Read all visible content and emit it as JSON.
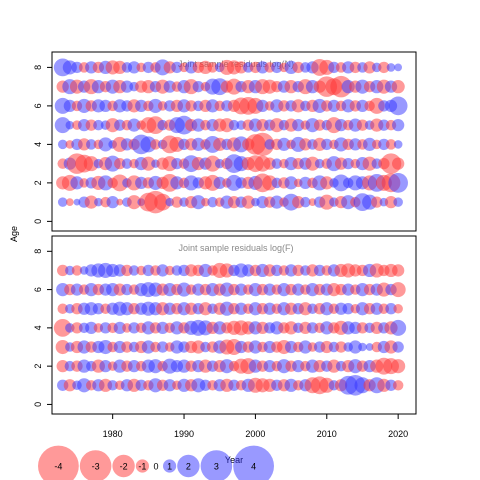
{
  "colors": {
    "positive": "#3333ff",
    "negative": "#ff3333",
    "frame": "#000000",
    "title": "#8a8a8a"
  },
  "chart_data": [
    {
      "type": "scatter",
      "title": "Joint sample residuals log(N)",
      "xlabel": "",
      "ylabel": "",
      "xlim": [
        1971.5,
        2022.5
      ],
      "ylim": [
        -0.5,
        8.8
      ],
      "x_ticks": [
        1980,
        1990,
        2000,
        2010,
        2020
      ],
      "y_ticks": [
        0,
        2,
        4,
        6,
        8
      ],
      "ages": [
        1,
        2,
        3,
        4,
        5,
        6,
        7,
        8
      ],
      "x_start": 1973,
      "x_end": 2020,
      "residuals": {
        "1": [
          0.6,
          -0.4,
          0.3,
          0.8,
          -1.0,
          0.5,
          -0.7,
          0.9,
          -0.3,
          0.6,
          -1.1,
          0.4,
          -1.6,
          -2.0,
          -1.4,
          0.5,
          -0.8,
          0.6,
          -0.9,
          1.1,
          -0.5,
          0.7,
          -0.6,
          1.0,
          -0.9,
          0.8,
          -1.0,
          0.5,
          0.9,
          -0.8,
          1.0,
          -0.6,
          1.4,
          -0.9,
          0.7,
          -0.4,
          0.8,
          -1.2,
          0.6,
          -0.9,
          1.1,
          -0.7,
          1.5,
          1.2,
          -0.8,
          0.5,
          -0.9,
          0.6
        ],
        "2": [
          -1.0,
          -1.3,
          1.0,
          -0.6,
          0.8,
          -1.1,
          1.2,
          -0.7,
          -1.4,
          0.6,
          -1.2,
          0.9,
          -0.8,
          1.1,
          -0.9,
          -1.5,
          1.0,
          -0.7,
          1.2,
          0.8,
          -1.0,
          -1.3,
          0.9,
          -0.6,
          1.3,
          0.8,
          -0.9,
          1.1,
          -1.6,
          -1.2,
          0.7,
          -0.8,
          1.0,
          -0.5,
          0.9,
          -0.7,
          1.2,
          -1.0,
          0.6,
          1.4,
          0.7,
          1.2,
          1.0,
          -1.2,
          1.5,
          -1.3,
          -1.6,
          1.7
        ],
        "3": [
          -0.7,
          0.9,
          -1.8,
          -1.5,
          -1.2,
          0.6,
          -1.0,
          1.3,
          -0.8,
          0.7,
          -0.6,
          1.0,
          -1.1,
          0.5,
          -0.9,
          -1.2,
          0.8,
          -0.7,
          1.4,
          -1.0,
          0.9,
          -1.3,
          0.6,
          -0.8,
          1.6,
          1.2,
          -1.0,
          -1.4,
          -1.3,
          -0.9,
          0.7,
          -0.6,
          1.0,
          -0.8,
          0.9,
          -1.1,
          0.6,
          -0.7,
          1.2,
          -0.9,
          0.8,
          -0.6,
          1.0,
          -1.1,
          0.7,
          -0.8,
          -1.8,
          -0.9
        ],
        "4": [
          0.6,
          -0.5,
          0.8,
          -0.9,
          0.7,
          -0.6,
          1.1,
          0.5,
          -1.2,
          0.9,
          -0.8,
          1.7,
          1.3,
          -0.7,
          0.6,
          -1.5,
          -1.2,
          0.8,
          -0.9,
          1.0,
          -0.7,
          1.4,
          -1.0,
          0.8,
          -1.1,
          1.3,
          -0.9,
          -1.8,
          -2.1,
          0.7,
          -0.8,
          1.0,
          -0.6,
          1.2,
          -0.9,
          0.7,
          -1.0,
          0.8,
          -0.6,
          1.1,
          -0.8,
          0.9,
          -0.7,
          1.0,
          -0.6,
          0.8,
          -0.7,
          0.5
        ],
        "5": [
          1.3,
          0.5,
          -0.6,
          0.9,
          -0.8,
          0.7,
          0.6,
          -1.1,
          0.8,
          -0.7,
          1.0,
          -0.6,
          -1.3,
          -1.5,
          0.7,
          -0.8,
          1.3,
          1.6,
          -0.9,
          1.0,
          -0.7,
          0.9,
          -1.0,
          -1.1,
          0.7,
          0.6,
          -0.8,
          1.0,
          -0.9,
          0.8,
          -1.1,
          0.7,
          -1.0,
          0.9,
          -0.6,
          1.1,
          -0.8,
          0.7,
          -1.3,
          0.9,
          -0.7,
          1.0,
          -0.8,
          0.6,
          -1.0,
          0.8,
          -0.7,
          0.9
        ],
        "6": [
          1.3,
          0.9,
          -0.7,
          1.1,
          -0.8,
          1.0,
          0.9,
          -0.7,
          1.0,
          0.8,
          -1.0,
          0.9,
          -0.7,
          1.1,
          -0.6,
          0.8,
          -0.9,
          1.0,
          -0.8,
          0.7,
          -0.9,
          1.0,
          -0.7,
          0.8,
          -0.9,
          -1.4,
          -1.5,
          -1.3,
          0.9,
          -0.6,
          1.0,
          -0.8,
          0.8,
          -1.0,
          0.7,
          -0.9,
          1.1,
          -0.8,
          0.9,
          -0.7,
          1.0,
          -0.8,
          0.9,
          -0.7,
          -1.3,
          0.8,
          0.9,
          1.6
        ],
        "7": [
          -0.9,
          1.2,
          -1.1,
          0.9,
          -1.2,
          1.0,
          -0.8,
          1.1,
          -1.0,
          0.9,
          0.6,
          -0.9,
          -1.0,
          0.8,
          -1.1,
          0.9,
          -0.7,
          1.0,
          -1.2,
          0.8,
          -0.6,
          1.3,
          1.4,
          -0.9,
          -1.3,
          0.8,
          -1.0,
          1.0,
          -1.2,
          -1.1,
          -0.8,
          0.9,
          -1.0,
          0.8,
          -1.2,
          1.0,
          -0.9,
          -1.8,
          -1.4,
          -1.9,
          1.0,
          -0.9,
          1.1,
          -0.8,
          1.0,
          -1.1,
          0.9,
          -1.0
        ],
        "8": [
          1.5,
          1.1,
          0.8,
          -0.7,
          0.9,
          -0.8,
          1.0,
          -1.1,
          -1.0,
          0.7,
          0.9,
          -0.6,
          0.8,
          -0.7,
          1.3,
          -0.9,
          0.8,
          -0.6,
          0.9,
          -0.8,
          -1.0,
          -0.7,
          0.6,
          -1.2,
          -1.1,
          -0.9,
          0.7,
          -0.8,
          0.9,
          -0.7,
          0.8,
          -0.6,
          1.0,
          -0.8,
          0.7,
          0.9,
          -1.4,
          -1.2,
          0.8,
          -0.7,
          0.9,
          -0.8,
          0.7,
          -0.9,
          0.6,
          -0.8,
          0.5,
          0.4
        ]
      }
    },
    {
      "type": "scatter",
      "title": "Joint sample residuals log(F)",
      "xlabel": "Year",
      "ylabel": "",
      "xlim": [
        1971.5,
        2022.5
      ],
      "ylim": [
        -0.5,
        8.8
      ],
      "x_ticks": [
        1980,
        1990,
        2000,
        2010,
        2020
      ],
      "y_ticks": [
        0,
        2,
        4,
        6,
        8
      ],
      "ages": [
        1,
        2,
        3,
        4,
        5,
        6,
        7
      ],
      "x_start": 1973,
      "x_end": 2020,
      "residuals": {
        "1": [
          0.8,
          -0.9,
          0.6,
          1.1,
          -0.7,
          0.9,
          -1.0,
          0.7,
          -0.6,
          0.9,
          -1.0,
          0.8,
          -0.7,
          1.1,
          -0.8,
          0.9,
          -0.6,
          1.0,
          -0.9,
          1.1,
          0.8,
          -0.7,
          0.9,
          -1.0,
          0.8,
          -0.7,
          1.0,
          -1.2,
          -1.1,
          -1.0,
          0.8,
          -0.9,
          1.0,
          -0.7,
          0.9,
          -1.3,
          -1.5,
          -1.2,
          0.7,
          -0.9,
          1.6,
          1.8,
          1.3,
          -0.9,
          1.3,
          -1.0,
          0.8,
          -0.7
        ],
        "2": [
          -0.9,
          0.7,
          -0.8,
          1.0,
          0.7,
          -1.0,
          0.9,
          -0.6,
          1.0,
          -0.8,
          0.9,
          -0.7,
          1.0,
          1.1,
          -0.7,
          1.2,
          0.9,
          1.0,
          -0.8,
          0.9,
          -1.0,
          0.8,
          -0.9,
          1.1,
          -0.7,
          -1.2,
          -1.3,
          1.0,
          -0.8,
          0.9,
          -0.7,
          1.1,
          -0.8,
          0.9,
          -0.7,
          1.0,
          -0.9,
          0.8,
          -1.0,
          0.7,
          -0.9,
          1.1,
          -0.8,
          0.9,
          -1.0,
          -1.4,
          -1.3,
          -1.1
        ],
        "3": [
          -1.1,
          0.6,
          -0.9,
          1.0,
          -0.8,
          0.9,
          1.1,
          -0.7,
          0.9,
          -0.8,
          0.7,
          -0.9,
          1.0,
          -0.7,
          0.8,
          -0.6,
          1.0,
          0.8,
          -0.9,
          -1.0,
          0.7,
          -0.8,
          1.0,
          -1.2,
          -1.3,
          0.9,
          -0.8,
          1.0,
          -0.7,
          0.9,
          -0.8,
          -1.1,
          0.9,
          -0.7,
          1.0,
          -0.6,
          0.8,
          -0.9,
          0.7,
          -0.8,
          0.6,
          1.0,
          0.5,
          0.4,
          -0.7,
          0.9,
          -1.0,
          0.8
        ],
        "4": [
          -1.5,
          0.6,
          -0.8,
          0.7,
          0.9,
          -0.6,
          0.8,
          -0.7,
          0.9,
          -0.6,
          0.8,
          -0.7,
          1.0,
          -0.8,
          0.9,
          -0.7,
          1.0,
          -0.8,
          1.1,
          1.3,
          1.2,
          -0.9,
          1.0,
          -0.8,
          -1.1,
          -1.2,
          -1.0,
          1.0,
          -0.9,
          0.8,
          1.0,
          -0.8,
          -1.0,
          0.7,
          -0.9,
          0.8,
          -0.7,
          1.0,
          -0.8,
          -1.1,
          1.0,
          0.9,
          -0.8,
          0.7,
          -0.9,
          0.8,
          -1.0,
          1.3
        ],
        "5": [
          -0.7,
          0.6,
          -0.8,
          0.9,
          1.0,
          0.8,
          -0.7,
          0.9,
          1.1,
          1.0,
          -0.8,
          0.9,
          1.1,
          1.0,
          -1.0,
          0.9,
          -0.8,
          1.0,
          -0.9,
          0.8,
          -1.0,
          0.7,
          -0.9,
          1.1,
          -0.8,
          0.9,
          -0.7,
          1.0,
          -0.8,
          0.9,
          -0.7,
          1.0,
          -0.9,
          0.8,
          -1.0,
          0.7,
          -0.8,
          1.0,
          -0.7,
          0.9,
          0.8,
          -0.6,
          1.0,
          -0.8,
          0.9,
          -0.7,
          0.8,
          -0.6
        ],
        "6": [
          1.0,
          -0.8,
          0.9,
          -0.7,
          1.0,
          -0.8,
          0.9,
          1.0,
          -0.9,
          0.8,
          -0.7,
          1.0,
          1.2,
          1.1,
          -0.9,
          1.0,
          -0.8,
          1.1,
          -0.7,
          0.9,
          -0.8,
          1.0,
          -0.9,
          1.1,
          -0.8,
          0.9,
          -0.7,
          1.0,
          -0.8,
          0.9,
          -0.7,
          1.0,
          -0.8,
          0.9,
          -0.7,
          1.0,
          -0.8,
          0.9,
          -1.0,
          -0.8,
          0.9,
          -0.7,
          1.0,
          -0.8,
          0.9,
          -1.1,
          0.8,
          -1.2
        ],
        "7": [
          -0.8,
          0.6,
          -0.7,
          0.5,
          0.9,
          1.1,
          1.2,
          1.0,
          0.9,
          -0.8,
          0.7,
          -0.6,
          0.8,
          -0.7,
          0.9,
          -0.6,
          0.7,
          0.8,
          -0.9,
          -0.8,
          1.0,
          -0.7,
          -1.2,
          -1.1,
          0.8,
          1.1,
          0.9,
          -0.8,
          1.0,
          -0.9,
          0.8,
          -0.7,
          0.9,
          -0.8,
          0.7,
          -0.9,
          0.8,
          -0.7,
          0.9,
          -1.0,
          -1.1,
          -0.9,
          -0.8,
          1.0,
          -1.1,
          -0.8,
          -1.0,
          -0.9
        ]
      }
    }
  ],
  "shared": {
    "ylabel": "Age",
    "xlabel": "Year"
  },
  "legend": {
    "values": [
      -4,
      -3,
      -2,
      -1,
      0,
      1,
      2,
      3,
      4
    ],
    "labels": [
      "-4",
      "-3",
      "-2",
      "-1",
      "0",
      "1",
      "2",
      "3",
      "4"
    ]
  }
}
